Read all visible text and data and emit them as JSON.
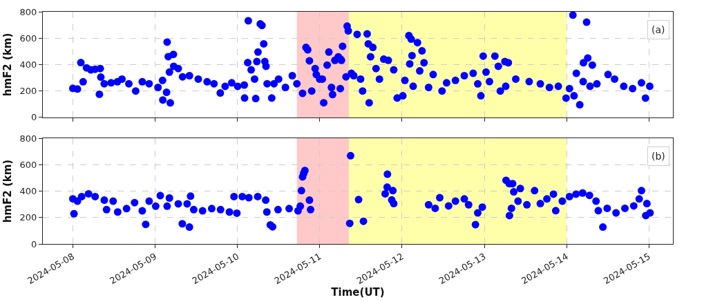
{
  "chart_data": [
    {
      "type": "scatter",
      "ylabel": "hmF2 (km)",
      "annotations": [
        "(a)"
      ],
      "marker": "circle",
      "grid": true,
      "tick_labels": "y",
      "xlim": [
        "2024-05-07T15:15",
        "2024-05-15T07:00"
      ],
      "xticks": [
        "2024-05-08",
        "2024-05-09",
        "2024-05-10",
        "2024-05-11",
        "2024-05-12",
        "2024-05-13",
        "2024-05-14",
        "2024-05-15"
      ],
      "ylim": [
        0,
        800
      ],
      "yticks": [
        0,
        200,
        400,
        600,
        800
      ],
      "bands": [
        {
          "axis": "x",
          "from": "2024-05-10T17:20",
          "to": "2024-05-11T08:30",
          "color": "#ffc9c9"
        },
        {
          "axis": "x",
          "from": "2024-05-11T08:30",
          "to": "2024-05-14T00:00",
          "color": "#ffffaa"
        }
      ],
      "series": [
        {
          "color": "#0000ff",
          "x": [
            "2024-05-08T00:00",
            "2024-05-08T01:20",
            "2024-05-08T02:20",
            "2024-05-08T03:00",
            "2024-05-08T04:00",
            "2024-05-08T05:15",
            "2024-05-08T06:30",
            "2024-05-08T08:00",
            "2024-05-08T07:45",
            "2024-05-08T08:10",
            "2024-05-08T09:10",
            "2024-05-08T11:10",
            "2024-05-08T13:00",
            "2024-05-08T14:20",
            "2024-05-08T16:20",
            "2024-05-08T18:20",
            "2024-05-08T20:15",
            "2024-05-08T22:15",
            "2024-05-09T00:50",
            "2024-05-09T02:10",
            "2024-05-09T02:15",
            "2024-05-09T03:20",
            "2024-05-09T04:25",
            "2024-05-09T03:30",
            "2024-05-09T03:50",
            "2024-05-09T05:20",
            "2024-05-09T04:10",
            "2024-05-09T05:25",
            "2024-05-09T06:45",
            "2024-05-09T08:00",
            "2024-05-09T10:00",
            "2024-05-09T12:35",
            "2024-05-09T15:10",
            "2024-05-09T17:10",
            "2024-05-09T19:00",
            "2024-05-09T20:25",
            "2024-05-09T22:20",
            "2024-05-10T00:05",
            "2024-05-10T02:00",
            "2024-05-10T02:05",
            "2024-05-10T03:00",
            "2024-05-10T03:10",
            "2024-05-10T04:00",
            "2024-05-10T05:00",
            "2024-05-10T05:20",
            "2024-05-10T06:00",
            "2024-05-10T06:40",
            "2024-05-10T07:10",
            "2024-05-10T07:40",
            "2024-05-10T05:40",
            "2024-05-10T08:00",
            "2024-05-10T08:20",
            "2024-05-10T08:40",
            "2024-05-10T10:00",
            "2024-05-10T10:40",
            "2024-05-10T12:00",
            "2024-05-10T14:00",
            "2024-05-10T16:00",
            "2024-05-10T17:20",
            "2024-05-10T19:00",
            "2024-05-10T20:00",
            "2024-05-10T20:30",
            "2024-05-10T21:00",
            "2024-05-10T21:40",
            "2024-05-10T22:40",
            "2024-05-10T23:00",
            "2024-05-11T00:00",
            "2024-05-11T00:45",
            "2024-05-11T01:10",
            "2024-05-11T02:10",
            "2024-05-11T02:40",
            "2024-05-11T03:25",
            "2024-05-11T03:45",
            "2024-05-11T04:25",
            "2024-05-11T05:25",
            "2024-05-11T06:20",
            "2024-05-11T06:00",
            "2024-05-11T06:40",
            "2024-05-11T07:40",
            "2024-05-11T08:00",
            "2024-05-11T08:20",
            "2024-05-11T09:15",
            "2024-05-11T06:05",
            "2024-05-11T09:55",
            "2024-05-11T10:55",
            "2024-05-11T11:55",
            "2024-05-11T12:30",
            "2024-05-11T13:50",
            "2024-05-11T14:10",
            "2024-05-11T14:25",
            "2024-05-11T15:30",
            "2024-05-11T14:50",
            "2024-05-11T16:25",
            "2024-05-11T17:25",
            "2024-05-11T18:40",
            "2024-05-11T20:00",
            "2024-05-11T21:35",
            "2024-05-11T22:35",
            "2024-05-12T00:15",
            "2024-05-12T00:50",
            "2024-05-12T02:00",
            "2024-05-12T02:40",
            "2024-05-12T04:30",
            "2024-05-12T02:15",
            "2024-05-12T02:55",
            "2024-05-12T03:15",
            "2024-05-12T05:50",
            "2024-05-12T05:10",
            "2024-05-12T06:25",
            "2024-05-12T07:45",
            "2024-05-12T09:05",
            "2024-05-12T11:40",
            "2024-05-12T13:00",
            "2024-05-12T15:35",
            "2024-05-12T18:10",
            "2024-05-12T20:45",
            "2024-05-12T22:05",
            "2024-05-12T23:00",
            "2024-05-12T23:40",
            "2024-05-13T00:30",
            "2024-05-13T01:30",
            "2024-05-13T03:05",
            "2024-05-13T04:05",
            "2024-05-13T06:00",
            "2024-05-13T07:00",
            "2024-05-13T04:40",
            "2024-05-13T06:15",
            "2024-05-13T09:10",
            "2024-05-13T13:05",
            "2024-05-13T16:20",
            "2024-05-13T19:00",
            "2024-05-13T21:35",
            "2024-05-13T23:50",
            "2024-05-14T00:50",
            "2024-05-14T01:50",
            "2024-05-14T02:10",
            "2024-05-14T02:50",
            "2024-05-14T03:50",
            "2024-05-14T04:50",
            "2024-05-14T04:55",
            "2024-05-14T05:50",
            "2024-05-14T06:10",
            "2024-05-14T07:30",
            "2024-05-14T06:50",
            "2024-05-14T08:50",
            "2024-05-14T12:05",
            "2024-05-14T14:00",
            "2024-05-14T16:40",
            "2024-05-14T19:15",
            "2024-05-14T21:50",
            "2024-05-14T23:00",
            "2024-05-15T00:15"
          ],
          "values": [
            220,
            215,
            415,
            270,
            375,
            360,
            365,
            370,
            175,
            305,
            255,
            262,
            270,
            290,
            255,
            200,
            270,
            255,
            227,
            280,
            132,
            190,
            110,
            570,
            460,
            477,
            343,
            387,
            370,
            307,
            316,
            290,
            270,
            255,
            185,
            235,
            262,
            235,
            245,
            147,
            415,
            732,
            360,
            290,
            143,
            495,
            708,
            696,
            557,
            423,
            423,
            387,
            255,
            147,
            255,
            290,
            227,
            316,
            255,
            182,
            530,
            512,
            429,
            200,
            370,
            325,
            290,
            290,
            111,
            396,
            495,
            227,
            173,
            432,
            459,
            432,
            218,
            539,
            307,
            691,
            655,
            334,
            441,
            316,
            629,
            290,
            200,
            632,
            557,
            111,
            530,
            459,
            370,
            290,
            441,
            432,
            360,
            147,
            164,
            280,
            620,
            593,
            566,
            405,
            468,
            236,
            504,
            352,
            414,
            227,
            325,
            200,
            262,
            280,
            316,
            334,
            254,
            164,
            464,
            343,
            271,
            464,
            387,
            423,
            414,
            200,
            236,
            290,
            271,
            254,
            227,
            236,
            146,
            218,
            775,
            164,
            334,
            96,
            271,
            414,
            721,
            450,
            396,
            236,
            254,
            325,
            290,
            236,
            218,
            262,
            146,
            236
          ]
        }
      ]
    },
    {
      "type": "scatter",
      "ylabel": "hmF2 (km)",
      "xlabel": "Time(UT)",
      "annotations": [
        "(b)"
      ],
      "marker": "circle",
      "grid": true,
      "xlim": [
        "2024-05-07T15:15",
        "2024-05-15T07:00"
      ],
      "xticks": [
        "2024-05-08",
        "2024-05-09",
        "2024-05-10",
        "2024-05-11",
        "2024-05-12",
        "2024-05-13",
        "2024-05-14",
        "2024-05-15"
      ],
      "ylim": [
        0,
        800
      ],
      "yticks": [
        0,
        200,
        400,
        600,
        800
      ],
      "bands": [
        {
          "axis": "x",
          "from": "2024-05-10T17:20",
          "to": "2024-05-11T08:30",
          "color": "#ffc9c9"
        },
        {
          "axis": "x",
          "from": "2024-05-11T08:30",
          "to": "2024-05-14T00:00",
          "color": "#ffffaa"
        }
      ],
      "series": [
        {
          "color": "#0000ff",
          "x": [
            "2024-05-08T00:00",
            "2024-05-08T00:20",
            "2024-05-08T01:20",
            "2024-05-08T02:35",
            "2024-05-08T04:35",
            "2024-05-08T06:30",
            "2024-05-08T09:10",
            "2024-05-08T09:50",
            "2024-05-08T11:45",
            "2024-05-08T13:05",
            "2024-05-08T15:40",
            "2024-05-08T18:00",
            "2024-05-08T20:15",
            "2024-05-08T21:15",
            "2024-05-08T22:15",
            "2024-05-09T00:10",
            "2024-05-09T01:30",
            "2024-05-09T03:30",
            "2024-05-09T04:10",
            "2024-05-09T06:45",
            "2024-05-09T07:55",
            "2024-05-09T10:00",
            "2024-05-09T10:20",
            "2024-05-09T09:20",
            "2024-05-09T11:15",
            "2024-05-09T13:50",
            "2024-05-09T16:30",
            "2024-05-09T19:05",
            "2024-05-09T21:40",
            "2024-05-09T23:00",
            "2024-05-09T23:50",
            "2024-05-10T01:25",
            "2024-05-10T03:20",
            "2024-05-10T05:55",
            "2024-05-10T08:15",
            "2024-05-10T08:35",
            "2024-05-10T09:35",
            "2024-05-10T10:15",
            "2024-05-10T11:50",
            "2024-05-10T15:05",
            "2024-05-10T17:40",
            "2024-05-10T18:20",
            "2024-05-10T18:40",
            "2024-05-10T19:00",
            "2024-05-10T19:40",
            "2024-05-10T19:20",
            "2024-05-10T21:00",
            "2024-05-10T21:20",
            "2024-05-11T09:00",
            "2024-05-11T08:45",
            "2024-05-11T11:20",
            "2024-05-11T12:45",
            "2024-05-11T19:45",
            "2024-05-11T19:40",
            "2024-05-11T19:05",
            "2024-05-11T21:20",
            "2024-05-11T21:00",
            "2024-05-11T21:35",
            "2024-05-12T07:45",
            "2024-05-12T09:40",
            "2024-05-12T11:00",
            "2024-05-12T13:35",
            "2024-05-12T15:35",
            "2024-05-12T18:10",
            "2024-05-12T19:25",
            "2024-05-12T21:25",
            "2024-05-12T22:05",
            "2024-05-12T23:25",
            "2024-05-13T06:20",
            "2024-05-13T07:15",
            "2024-05-13T08:15",
            "2024-05-13T08:35",
            "2024-05-13T10:30",
            "2024-05-13T07:20",
            "2024-05-13T07:55",
            "2024-05-13T09:50",
            "2024-05-13T12:25",
            "2024-05-13T14:40",
            "2024-05-13T16:20",
            "2024-05-13T18:15",
            "2024-05-13T20:10",
            "2024-05-13T20:50",
            "2024-05-13T22:45",
            "2024-05-14T00:50",
            "2024-05-14T02:45",
            "2024-05-14T04:40",
            "2024-05-14T06:40",
            "2024-05-14T08:35",
            "2024-05-14T09:15",
            "2024-05-14T10:35",
            "2024-05-14T11:50",
            "2024-05-14T14:25",
            "2024-05-14T17:00",
            "2024-05-14T19:35",
            "2024-05-14T21:50",
            "2024-05-14T21:10",
            "2024-05-14T23:25",
            "2024-05-14T23:05",
            "2024-05-15T00:20"
          ],
          "values": [
            342,
            229,
            324,
            359,
            380,
            359,
            332,
            260,
            324,
            242,
            268,
            313,
            251,
            148,
            324,
            286,
            366,
            286,
            348,
            304,
            153,
            128,
            362,
            304,
            260,
            251,
            268,
            260,
            242,
            359,
            233,
            359,
            350,
            359,
            332,
            242,
            144,
            130,
            260,
            268,
            251,
            286,
            404,
            508,
            556,
            535,
            332,
            260,
            668,
            156,
            336,
            172,
            528,
            430,
            380,
            404,
            333,
            306,
            297,
            270,
            350,
            288,
            324,
            341,
            297,
            146,
            235,
            279,
            482,
            457,
            457,
            395,
            420,
            215,
            270,
            324,
            297,
            404,
            306,
            341,
            377,
            252,
            324,
            359,
            377,
            386,
            368,
            324,
            252,
            128,
            270,
            235,
            270,
            288,
            404,
            341,
            306,
            215,
            235
          ]
        }
      ]
    }
  ]
}
